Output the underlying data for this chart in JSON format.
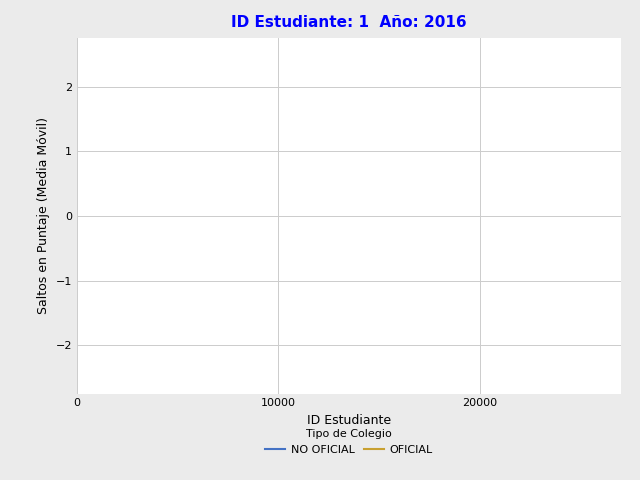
{
  "title": "ID Estudiante: 1  Año: 2016",
  "title_color": "blue",
  "title_fontsize": 11,
  "xlabel": "ID Estudiante",
  "ylabel": "Saltos en Puntaje (Media Móvil)",
  "xlim": [
    0,
    27000
  ],
  "ylim": [
    -2.75,
    2.75
  ],
  "xticks": [
    0,
    10000,
    20000
  ],
  "yticks": [
    -2,
    -1,
    0,
    1,
    2
  ],
  "grid_color": "#cccccc",
  "background_color": "#ebebeb",
  "plot_bg_color": "#ffffff",
  "legend_title": "Tipo de Colegio",
  "legend_entries": [
    "NO OFICIAL",
    "OFICIAL"
  ],
  "legend_colors": [
    "#4472c4",
    "#c8a030"
  ],
  "legend_fontsize": 8,
  "legend_title_fontsize": 8,
  "axis_label_fontsize": 9,
  "tick_fontsize": 8
}
